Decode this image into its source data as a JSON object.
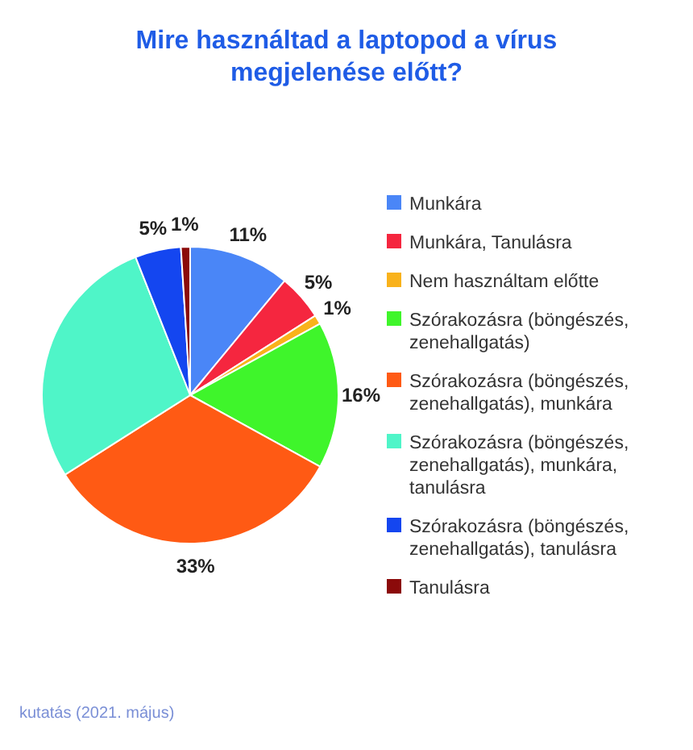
{
  "chart_data": {
    "type": "pie",
    "title": "Mire használtad a laptopod a vírus megjelenése előtt?",
    "categories": [
      "Munkára",
      "Munkára, Tanulásra",
      "Nem használtam előtte",
      "Szórakozásra (böngészés, zenehallgatás)",
      "Szórakozásra (böngészés, zenehallgatás), munkára",
      "Szórakozásra (böngészés, zenehallgatás), munkára, tanulásra",
      "Szórakozásra (böngészés, zenehallgatás), tanulásra",
      "Tanulásra"
    ],
    "values": [
      11,
      5,
      1,
      16,
      33,
      28,
      5,
      1
    ],
    "value_labels": [
      "11%",
      "5%",
      "1%",
      "16%",
      "33%",
      null,
      "5%",
      "1%"
    ],
    "colors": [
      "#4a86f7",
      "#f5263f",
      "#f9b21b",
      "#3ff52b",
      "#ff5a14",
      "#4ff5c8",
      "#1446f0",
      "#8b0a0a"
    ],
    "legend": "right",
    "annotations": [
      "kutatás (2021. május)"
    ]
  }
}
